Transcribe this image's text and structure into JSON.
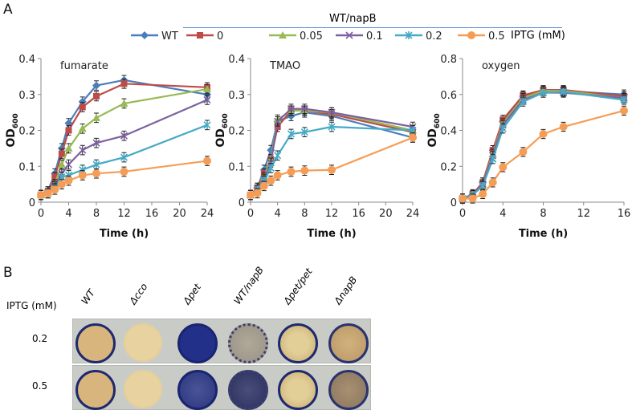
{
  "panel_a_label": "A",
  "panel_b_label": "B",
  "legend": {
    "group_label": "WT/napB",
    "unit_label": "IPTG (mM)",
    "entries": [
      "WT",
      "0",
      "0.05",
      "0.1",
      "0.2",
      "0.5"
    ]
  },
  "colors": {
    "WT": "#4a7ebb",
    "0": "#be4b48",
    "0.05": "#98b954",
    "0.1": "#7d60a0",
    "0.2": "#46aac5",
    "0.5": "#f59d56"
  },
  "chart_data": [
    {
      "type": "line",
      "title": "fumarate",
      "xlabel": "Time (h)",
      "ylabel": "OD600",
      "xlim": [
        0,
        24
      ],
      "ylim": [
        0,
        0.4
      ],
      "xticks": [
        0,
        4,
        8,
        12,
        16,
        20,
        24
      ],
      "yticks": [
        0,
        0.1,
        0.2,
        0.3,
        0.4
      ],
      "ytick_labels": [
        "0",
        "0.1",
        "0.2",
        "0.3",
        "0.4"
      ],
      "x": [
        0,
        1,
        2,
        3,
        4,
        6,
        8,
        12,
        24
      ],
      "err": 0.013,
      "series": [
        {
          "name": "WT",
          "values": [
            0.02,
            0.03,
            0.08,
            0.15,
            0.22,
            0.28,
            0.325,
            0.34,
            0.3
          ]
        },
        {
          "name": "0",
          "values": [
            0.02,
            0.03,
            0.07,
            0.135,
            0.2,
            0.265,
            0.295,
            0.33,
            0.32
          ]
        },
        {
          "name": "0.05",
          "values": [
            0.02,
            0.025,
            0.05,
            0.105,
            0.15,
            0.205,
            0.235,
            0.275,
            0.315
          ]
        },
        {
          "name": "0.1",
          "values": [
            0.02,
            0.025,
            0.045,
            0.08,
            0.105,
            0.145,
            0.165,
            0.185,
            0.285
          ]
        },
        {
          "name": "0.2",
          "values": [
            0.02,
            0.025,
            0.04,
            0.07,
            0.075,
            0.09,
            0.105,
            0.125,
            0.215
          ]
        },
        {
          "name": "0.5",
          "values": [
            0.02,
            0.025,
            0.035,
            0.05,
            0.06,
            0.075,
            0.08,
            0.085,
            0.115
          ]
        }
      ]
    },
    {
      "type": "line",
      "title": "TMAO",
      "xlabel": "Time (h)",
      "ylabel": "OD600",
      "xlim": [
        0,
        24
      ],
      "ylim": [
        0,
        0.4
      ],
      "xticks": [
        0,
        4,
        8,
        12,
        16,
        20,
        24
      ],
      "yticks": [
        0,
        0.1,
        0.2,
        0.3,
        0.4
      ],
      "ytick_labels": [
        "0",
        "0.1",
        "0.2",
        "0.3",
        "0.4"
      ],
      "x": [
        0,
        1,
        2,
        3,
        4,
        6,
        8,
        12,
        24
      ],
      "err": 0.013,
      "series": [
        {
          "name": "WT",
          "values": [
            0.02,
            0.04,
            0.09,
            0.145,
            0.225,
            0.24,
            0.25,
            0.24,
            0.18
          ]
        },
        {
          "name": "0",
          "values": [
            0.02,
            0.04,
            0.08,
            0.12,
            0.21,
            0.255,
            0.255,
            0.245,
            0.195
          ]
        },
        {
          "name": "0.05",
          "values": [
            0.02,
            0.035,
            0.07,
            0.12,
            0.23,
            0.255,
            0.255,
            0.25,
            0.2
          ]
        },
        {
          "name": "0.1",
          "values": [
            0.02,
            0.035,
            0.065,
            0.11,
            0.225,
            0.26,
            0.26,
            0.25,
            0.21
          ]
        },
        {
          "name": "0.2",
          "values": [
            0.02,
            0.035,
            0.06,
            0.095,
            0.13,
            0.19,
            0.195,
            0.21,
            0.2
          ]
        },
        {
          "name": "0.5",
          "values": [
            0.02,
            0.025,
            0.045,
            0.06,
            0.075,
            0.085,
            0.088,
            0.09,
            0.18
          ]
        }
      ]
    },
    {
      "type": "line",
      "title": "oxygen",
      "xlabel": "Time (h)",
      "ylabel": "OD600",
      "xlim": [
        0,
        16
      ],
      "ylim": [
        0,
        0.8
      ],
      "xticks": [
        0,
        4,
        8,
        12,
        16
      ],
      "yticks": [
        0,
        0.2,
        0.4,
        0.6,
        0.8
      ],
      "ytick_labels": [
        "0",
        "0.2",
        "0.4",
        "0.6",
        "0.8"
      ],
      "x": [
        0,
        1,
        2,
        3,
        4,
        6,
        8,
        10,
        16
      ],
      "err": 0.025,
      "series": [
        {
          "name": "WT",
          "values": [
            0.02,
            0.04,
            0.11,
            0.29,
            0.45,
            0.59,
            0.62,
            0.62,
            0.6
          ]
        },
        {
          "name": "0",
          "values": [
            0.02,
            0.045,
            0.11,
            0.29,
            0.46,
            0.595,
            0.625,
            0.625,
            0.59
          ]
        },
        {
          "name": "0.05",
          "values": [
            0.02,
            0.04,
            0.1,
            0.27,
            0.44,
            0.58,
            0.62,
            0.62,
            0.58
          ]
        },
        {
          "name": "0.1",
          "values": [
            0.02,
            0.04,
            0.1,
            0.26,
            0.43,
            0.57,
            0.61,
            0.61,
            0.58
          ]
        },
        {
          "name": "0.2",
          "values": [
            0.02,
            0.04,
            0.09,
            0.24,
            0.41,
            0.56,
            0.61,
            0.615,
            0.57
          ]
        },
        {
          "name": "0.5",
          "values": [
            0.02,
            0.02,
            0.045,
            0.11,
            0.195,
            0.28,
            0.38,
            0.42,
            0.51
          ]
        }
      ]
    }
  ],
  "panel_b": {
    "row_header": "IPTG (mM)",
    "rows": [
      "0.2",
      "0.5"
    ],
    "columns": [
      "WT",
      "Δcco",
      "Δpet",
      "WT/napB",
      "Δpet/pet",
      "ΔnapB"
    ]
  }
}
